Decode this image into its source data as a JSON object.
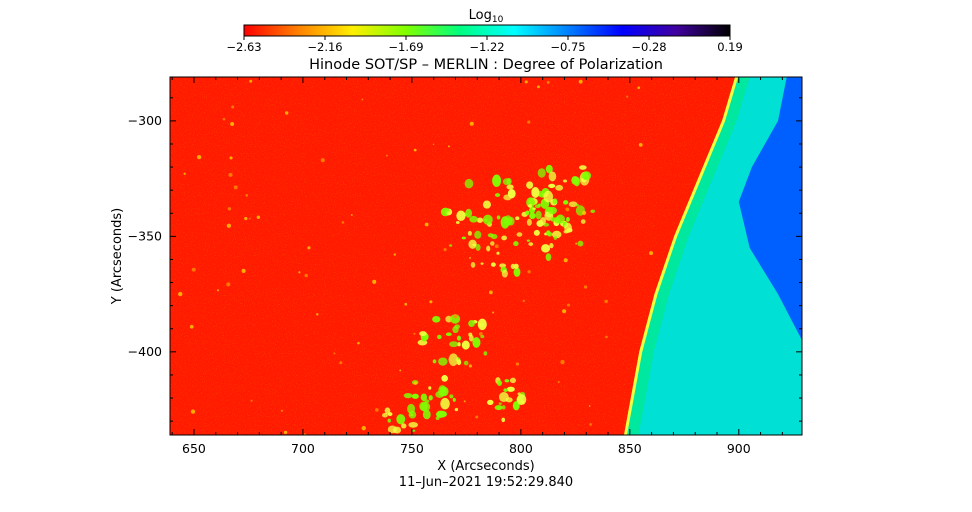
{
  "chart_data": {
    "type": "heatmap",
    "title": "Hinode SOT/SP – MERLIN : Degree of Polarization",
    "xlabel": "X (Arcseconds)",
    "ylabel": "Y (Arcseconds)",
    "timestamp": "11–Jun–2021 19:52:29.840",
    "xlim": [
      639,
      929
    ],
    "ylim": [
      -436,
      -281
    ],
    "x_ticks": [
      650,
      700,
      750,
      800,
      850,
      900
    ],
    "x_tick_labels": [
      "650",
      "700",
      "750",
      "800",
      "850",
      "900"
    ],
    "y_ticks": [
      -300,
      -350,
      -400
    ],
    "y_tick_labels": [
      "−300",
      "−350",
      "−400"
    ],
    "colorbar": {
      "label": "Log",
      "label_sub": "10",
      "range": [
        -2.63,
        0.19
      ],
      "ticks": [
        -2.63,
        -2.16,
        -1.69,
        -1.22,
        -0.75,
        -0.28,
        0.19
      ],
      "tick_labels": [
        "−2.63",
        "−2.16",
        "−1.69",
        "−1.22",
        "−0.75",
        "−0.28",
        "0.19"
      ],
      "colors": [
        "#ff0000",
        "#ff8000",
        "#ffee00",
        "#80ff00",
        "#00ff80",
        "#00ffff",
        "#0080ff",
        "#0000ff",
        "#4000a0",
        "#000000"
      ]
    },
    "grid": false,
    "limb": {
      "x_at_y": [
        [
          899,
          -281
        ],
        [
          893,
          -300
        ],
        [
          882,
          -325
        ],
        [
          871,
          -350
        ],
        [
          862,
          -375
        ],
        [
          855,
          -400
        ],
        [
          848,
          -436
        ]
      ]
    },
    "colors": {
      "disk": "#ff1a00",
      "active_region": "#7fff00",
      "limb_edge": "#f0ff40",
      "off_limb": "#00e8a0",
      "off_limb_far": "#00d8ff",
      "far_field": "#0060ff"
    }
  }
}
